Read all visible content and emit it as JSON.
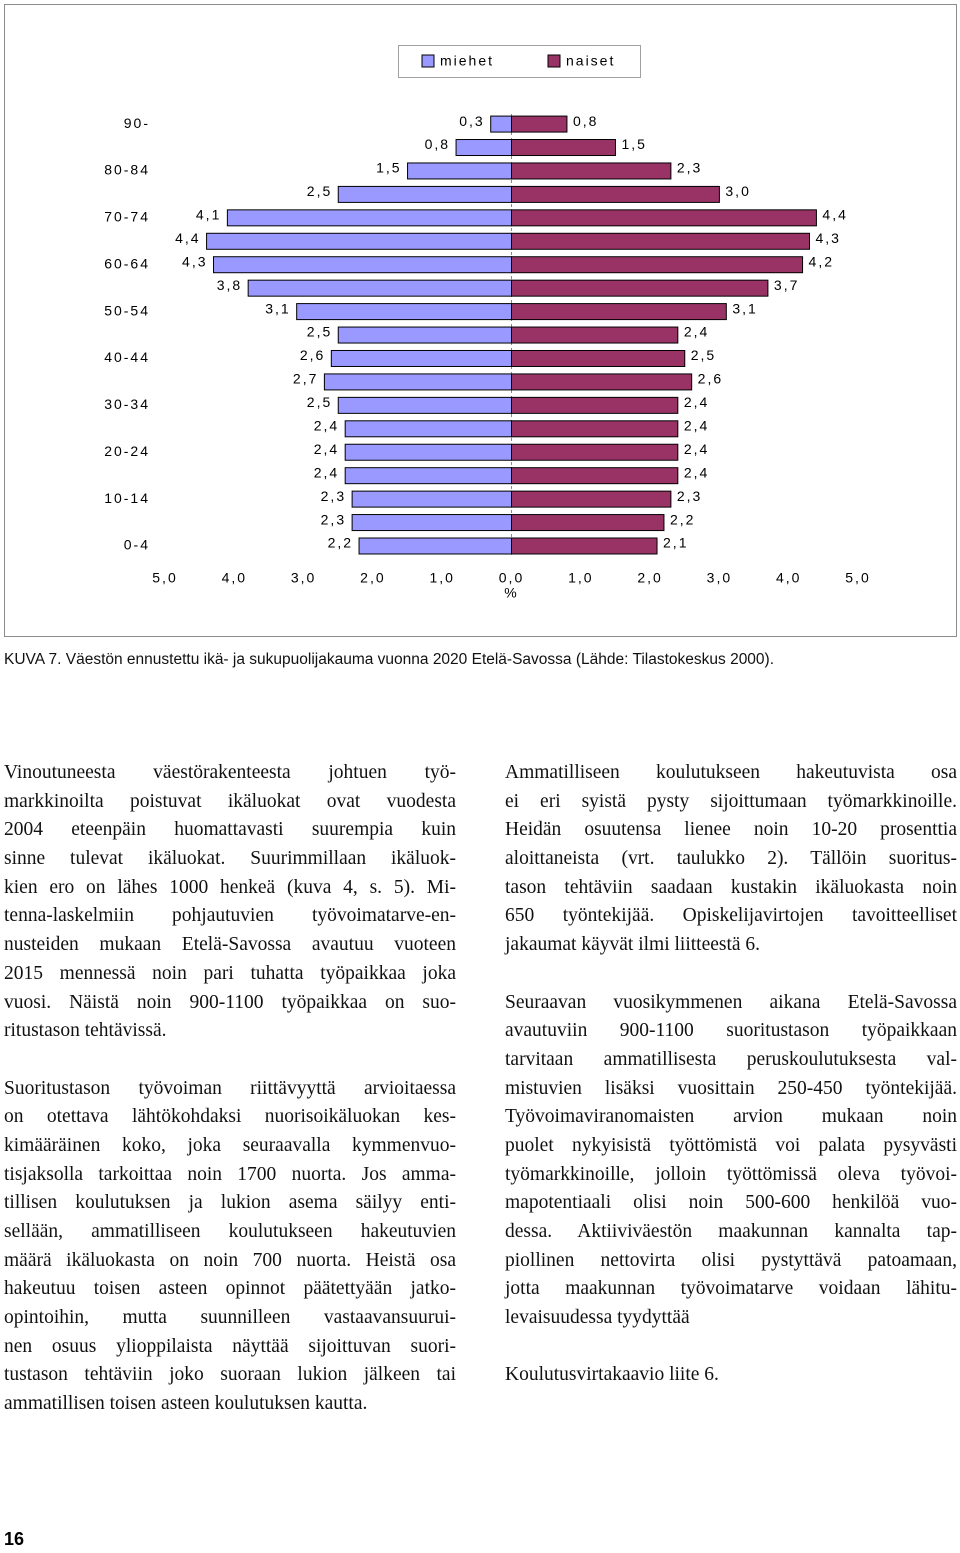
{
  "chart_data": {
    "type": "pyramid",
    "categories": [
      "0-4",
      null,
      "10-14",
      null,
      "20-24",
      null,
      "30-34",
      null,
      "40-44",
      null,
      "50-54",
      null,
      "60-64",
      null,
      "70-74",
      null,
      "80-84",
      null,
      "90-"
    ],
    "series": [
      {
        "name": "miehet",
        "color": "#9999ff",
        "side": "left",
        "values": [
          2.2,
          2.3,
          2.3,
          2.4,
          2.4,
          2.4,
          2.5,
          2.7,
          2.6,
          2.5,
          3.1,
          3.8,
          4.3,
          4.4,
          4.1,
          2.5,
          1.5,
          0.8,
          0.3
        ],
        "value_labels": [
          "2,2",
          "2,3",
          "2,3",
          "2,4",
          "2,4",
          "2,4",
          "2,5",
          "2,7",
          "2,6",
          "2,5",
          "3,1",
          "3,8",
          "4,3",
          "4,4",
          "4,1",
          "2,5",
          "1,5",
          "0,8",
          "0,3"
        ]
      },
      {
        "name": "naiset",
        "color": "#993366",
        "side": "right",
        "values": [
          2.1,
          2.2,
          2.3,
          2.4,
          2.4,
          2.4,
          2.4,
          2.6,
          2.5,
          2.4,
          3.1,
          3.7,
          4.2,
          4.3,
          4.4,
          3.0,
          2.3,
          1.5,
          0.8
        ],
        "value_labels": [
          "2,1",
          "2,2",
          "2,3",
          "2,4",
          "2,4",
          "2,4",
          "2,4",
          "2,6",
          "2,5",
          "2,4",
          "3,1",
          "3,7",
          "4,2",
          "4,3",
          "4,4",
          "3,0",
          "2,3",
          "1,5",
          "0,8"
        ]
      }
    ],
    "xlabel": "%",
    "xlim": [
      -5,
      5
    ],
    "xticks": [
      {
        "value": -5,
        "label": "5,0"
      },
      {
        "value": -4,
        "label": "4,0"
      },
      {
        "value": -3,
        "label": "3,0"
      },
      {
        "value": -2,
        "label": "2,0"
      },
      {
        "value": -1,
        "label": "1,0"
      },
      {
        "value": 0,
        "label": "0,0"
      },
      {
        "value": 1,
        "label": "1,0"
      },
      {
        "value": 2,
        "label": "2,0"
      },
      {
        "value": 3,
        "label": "3,0"
      },
      {
        "value": 4,
        "label": "4,0"
      },
      {
        "value": 5,
        "label": "5,0"
      }
    ],
    "legend": "top"
  },
  "caption": "KUVA 7. Väestön ennustettu ikä- ja sukupuolijakauma vuonna 2020 Etelä-Savossa (Lähde: Tilastokeskus 2000).",
  "body": {
    "left": [
      [
        "Vinoutuneesta väestörakenteesta johtuen työ-",
        "markkinoilta poistuvat ikäluokat ovat vuodesta",
        "2004 eteenpäin huomattavasti suurempia kuin",
        "sinne tulevat ikäluokat. Suurimmillaan ikäluok-",
        "kien ero on lähes 1000 henkeä (kuva 4, s. 5). Mi-",
        "tenna-laskelmiin pohjautuvien työvoimatarve-en-",
        "nusteiden mukaan Etelä-Savossa avautuu vuoteen",
        "2015 mennessä noin pari tuhatta työpaikkaa joka",
        "vuosi. Näistä noin 900-1100 työpaikkaa on suo-",
        "ritustason tehtävissä."
      ],
      [
        "Suoritustason työvoiman riittävyyttä arvioitaessa",
        "on otettava lähtökohdaksi nuorisoikäluokan kes-",
        "kimääräinen koko, joka seuraavalla kymmenvuo-",
        "tisjaksolla tarkoittaa noin 1700 nuorta. Jos amma-",
        "tillisen koulutuksen ja lukion asema säilyy enti-",
        "sellään, ammatilliseen koulutukseen hakeutuvien",
        "määrä ikäluokasta on noin 700 nuorta. Heistä osa",
        "hakeutuu toisen asteen opinnot päätettyään jatko-",
        "opintoihin, mutta suunnilleen vastaavansuurui-",
        "nen osuus ylioppilaista näyttää sijoittuvan suori-",
        "tustason tehtäviin joko suoraan lukion jälkeen tai",
        "ammatillisen toisen asteen koulutuksen kautta."
      ]
    ],
    "right": [
      [
        "Ammatilliseen koulutukseen hakeutuvista osa",
        "ei eri syistä pysty sijoittumaan työmarkkinoille.",
        "Heidän osuutensa lienee noin 10-20 prosenttia",
        "aloittaneista (vrt. taulukko 2). Tällöin suoritus-",
        "tason tehtäviin saadaan kustakin ikäluokasta noin",
        "650 työntekijää. Opiskelijavirtojen tavoitteelliset",
        "jakaumat käyvät ilmi liitteestä 6."
      ],
      [
        "Seuraavan vuosikymmenen aikana Etelä-Savossa",
        "avautuviin 900-1100 suoritustason työpaikkaan",
        "tarvitaan ammatillisesta peruskoulutuksesta val-",
        "mistuvien lisäksi vuosittain 250-450 työntekijää.",
        "Työvoimaviranomaisten arvion mukaan noin",
        "puolet nykyisistä työttömistä voi palata pysyvästi",
        "työmarkkinoille, jolloin työttömissä oleva työvoi-",
        "mapotentiaali olisi noin 500-600 henkilöä vuo-",
        "dessa. Aktiiviväestön maakunnan kannalta tap-",
        "piollinen nettovirta olisi pystyttävä patoamaan,",
        "jotta maakunnan työvoimatarve voidaan lähitu-",
        "levaisuudessa tyydyttää"
      ],
      [
        "Koulutusvirtakaavio liite 6."
      ]
    ]
  },
  "page_number": "16"
}
